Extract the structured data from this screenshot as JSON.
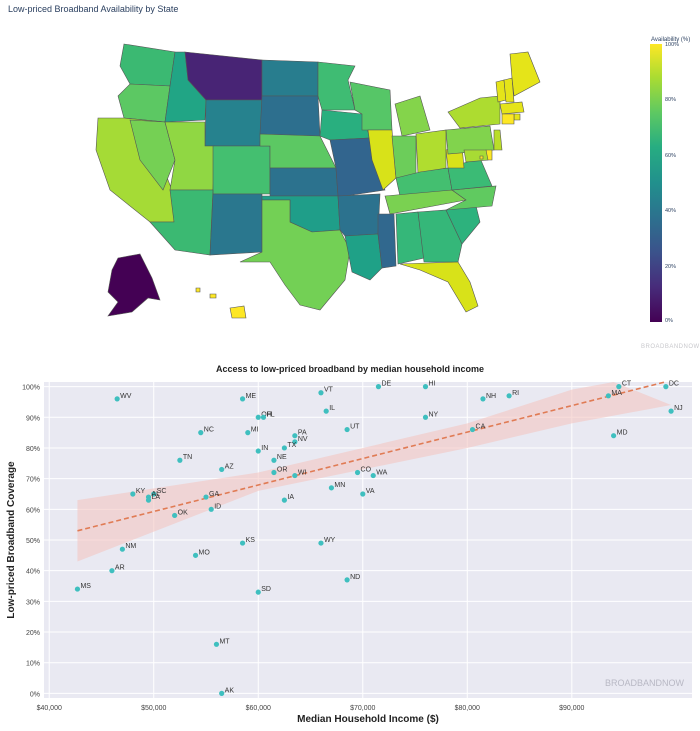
{
  "map": {
    "title": "Low-priced Broadband Availability by State",
    "colorbar_title": "Availability (%)",
    "colorbar_ticks": [
      "100%",
      "80%",
      "60%",
      "40%",
      "20%",
      "0%"
    ],
    "watermark": "BROADBANDNOW",
    "colors": {
      "low": "#440154",
      "mid": "#21908d",
      "high": "#fde725",
      "border": "#555555"
    }
  },
  "chart_data": {
    "type": "scatter",
    "title": "Access to low-priced broadband by median household income",
    "xlabel": "Median Household Income ($)",
    "ylabel": "Low-priced Broadband Coverage",
    "xlim": [
      39500,
      101500
    ],
    "ylim": [
      -1.5,
      101.5
    ],
    "xticks": [
      40000,
      50000,
      60000,
      70000,
      80000,
      90000
    ],
    "xtick_labels": [
      "$40,000",
      "$50,000",
      "$60,000",
      "$70,000",
      "$80,000",
      "$90,000"
    ],
    "yticks": [
      0,
      10,
      20,
      30,
      40,
      50,
      60,
      70,
      80,
      90,
      100
    ],
    "ytick_labels": [
      "0%",
      "10%",
      "20%",
      "30%",
      "40%",
      "50%",
      "60%",
      "70%",
      "80%",
      "90%",
      "100%"
    ],
    "grid": true,
    "watermark": "BROADBANDNOW",
    "colors": {
      "point": "#3fbfbf",
      "trend": "#e07b54",
      "band": "#f4c6c2",
      "background": "#e9e9f2"
    },
    "trend": {
      "x": [
        42700,
        99500
      ],
      "y": [
        53,
        102
      ]
    },
    "band": {
      "upper": [
        [
          42700,
          63
        ],
        [
          60000,
          72
        ],
        [
          80000,
          88
        ],
        [
          90000,
          99
        ],
        [
          94000,
          103
        ]
      ],
      "lower": [
        [
          99500,
          94
        ],
        [
          90000,
          88
        ],
        [
          80000,
          80
        ],
        [
          60000,
          66
        ],
        [
          42700,
          43
        ]
      ]
    },
    "points": [
      {
        "label": "WV",
        "x": 46500,
        "y": 96
      },
      {
        "label": "ME",
        "x": 58500,
        "y": 96
      },
      {
        "label": "VT",
        "x": 66000,
        "y": 98
      },
      {
        "label": "DE",
        "x": 71500,
        "y": 100
      },
      {
        "label": "HI",
        "x": 76000,
        "y": 100
      },
      {
        "label": "RI",
        "x": 84000,
        "y": 97
      },
      {
        "label": "NH",
        "x": 81500,
        "y": 96
      },
      {
        "label": "CT",
        "x": 94500,
        "y": 100
      },
      {
        "label": "DC",
        "x": 99000,
        "y": 100
      },
      {
        "label": "MA",
        "x": 93500,
        "y": 97
      },
      {
        "label": "NJ",
        "x": 99500,
        "y": 92
      },
      {
        "label": "OH",
        "x": 60000,
        "y": 90
      },
      {
        "label": "FL",
        "x": 60500,
        "y": 90
      },
      {
        "label": "IL",
        "x": 66500,
        "y": 92
      },
      {
        "label": "NY",
        "x": 76000,
        "y": 90
      },
      {
        "label": "UT",
        "x": 68500,
        "y": 86
      },
      {
        "label": "CA",
        "x": 80500,
        "y": 86
      },
      {
        "label": "MD",
        "x": 94000,
        "y": 84
      },
      {
        "label": "NC",
        "x": 54500,
        "y": 85
      },
      {
        "label": "MI",
        "x": 59000,
        "y": 85
      },
      {
        "label": "PA",
        "x": 63500,
        "y": 84
      },
      {
        "label": "NV",
        "x": 63500,
        "y": 82
      },
      {
        "label": "TX",
        "x": 62500,
        "y": 80
      },
      {
        "label": "IN",
        "x": 60000,
        "y": 79
      },
      {
        "label": "NE",
        "x": 61500,
        "y": 76
      },
      {
        "label": "TN",
        "x": 52500,
        "y": 76
      },
      {
        "label": "AZ",
        "x": 56500,
        "y": 73
      },
      {
        "label": "OR",
        "x": 61500,
        "y": 72
      },
      {
        "label": "CO",
        "x": 69500,
        "y": 72
      },
      {
        "label": "WI",
        "x": 63500,
        "y": 71
      },
      {
        "label": "WA",
        "x": 71000,
        "y": 71
      },
      {
        "label": "MN",
        "x": 67000,
        "y": 67
      },
      {
        "label": "VA",
        "x": 70000,
        "y": 65
      },
      {
        "label": "KY",
        "x": 48000,
        "y": 65
      },
      {
        "label": "SC",
        "x": 50000,
        "y": 65
      },
      {
        "label": "AL",
        "x": 49500,
        "y": 64
      },
      {
        "label": "LA",
        "x": 49500,
        "y": 63
      },
      {
        "label": "GA",
        "x": 55000,
        "y": 64
      },
      {
        "label": "IA",
        "x": 62500,
        "y": 63
      },
      {
        "label": "ID",
        "x": 55500,
        "y": 60
      },
      {
        "label": "OK",
        "x": 52000,
        "y": 58
      },
      {
        "label": "KS",
        "x": 58500,
        "y": 49
      },
      {
        "label": "WY",
        "x": 66000,
        "y": 49
      },
      {
        "label": "NM",
        "x": 47000,
        "y": 47
      },
      {
        "label": "MO",
        "x": 54000,
        "y": 45
      },
      {
        "label": "AR",
        "x": 46000,
        "y": 40
      },
      {
        "label": "ND",
        "x": 68500,
        "y": 37
      },
      {
        "label": "MS",
        "x": 42700,
        "y": 34
      },
      {
        "label": "SD",
        "x": 60000,
        "y": 33
      },
      {
        "label": "MT",
        "x": 56000,
        "y": 16
      },
      {
        "label": "AK",
        "x": 56500,
        "y": 0
      }
    ]
  }
}
